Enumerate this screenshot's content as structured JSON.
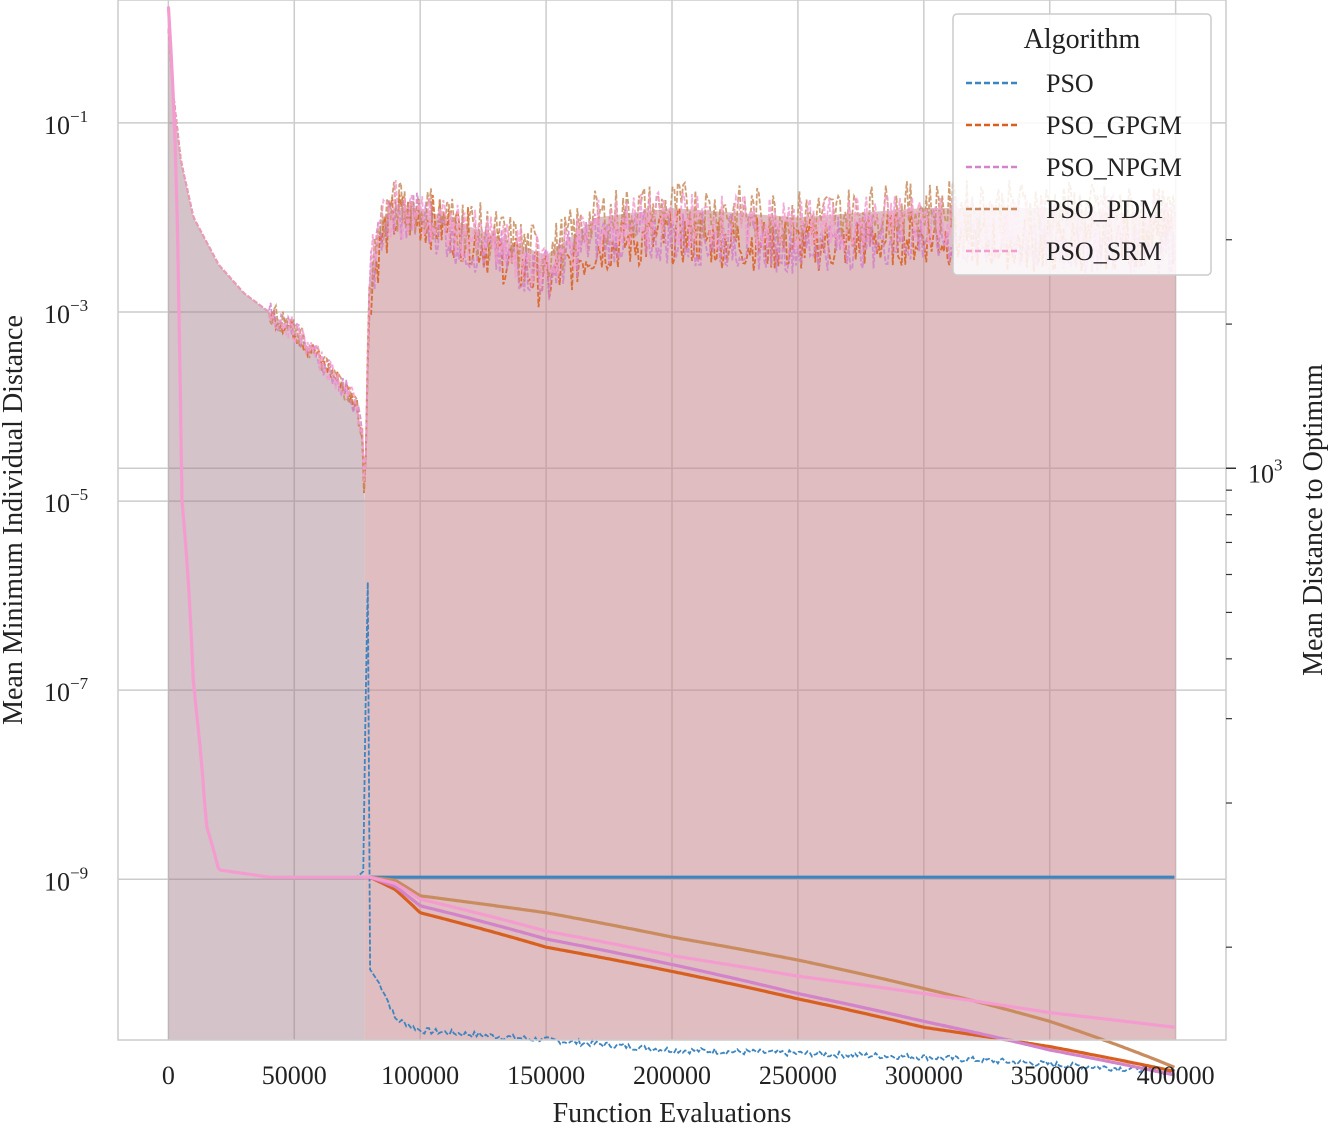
{
  "chart_data": {
    "type": "line",
    "xlabel": "Function Evaluations",
    "ylabel_left": "Mean Minimum Individual Distance",
    "ylabel_right": "Mean Distance to Optimum",
    "x_ticks": [
      0,
      50000,
      100000,
      150000,
      200000,
      250000,
      300000,
      350000,
      400000
    ],
    "x_tick_labels": [
      "0",
      "50000",
      "100000",
      "150000",
      "200000",
      "250000",
      "300000",
      "350000",
      "400000"
    ],
    "xlim": [
      -20000,
      420000
    ],
    "left_axis": {
      "scale": "log",
      "ylim_exp": [
        -10.7,
        0.3
      ],
      "ticks": [
        {
          "base": "10",
          "exp": "−1",
          "value_exp": -1
        },
        {
          "base": "10",
          "exp": "−3",
          "value_exp": -3
        },
        {
          "base": "10",
          "exp": "−5",
          "value_exp": -5
        },
        {
          "base": "10",
          "exp": "−7",
          "value_exp": -7
        },
        {
          "base": "10",
          "exp": "−9",
          "value_exp": -9
        }
      ]
    },
    "right_axis": {
      "scale": "log",
      "ylim": [
        64,
        9500
      ],
      "major_tick": {
        "base": "10",
        "exp": "3",
        "value": 1000
      },
      "minor_ticks": [
        100,
        200,
        300,
        400,
        500,
        600,
        700,
        800,
        900,
        2000,
        3000
      ]
    },
    "legend": {
      "title": "Algorithm",
      "placement": "top-right",
      "entries": [
        "PSO",
        "PSO_GPGM",
        "PSO_NPGM",
        "PSO_PDM",
        "PSO_SRM"
      ]
    },
    "colors": {
      "PSO": "#3d85c0",
      "PSO_GPGM": "#d95f1e",
      "PSO_NPGM": "#d383c9",
      "PSO_PDM": "#c98c5e",
      "PSO_SRM": "#f49ccf",
      "fill": "#c5868c"
    },
    "grid": true,
    "series": [
      {
        "name": "PSO",
        "axis": "right",
        "x": [
          0,
          5000,
          10000,
          15000,
          20000,
          40000,
          60000,
          75000,
          78000,
          79000,
          80000,
          85000,
          90000,
          100000,
          150000,
          200000,
          250000,
          300000,
          350000,
          400000
        ],
        "y": [
          9200,
          900,
          350,
          180,
          145,
          140,
          140,
          140,
          145,
          700,
          90,
          82,
          71,
          67,
          64,
          61,
          60,
          59,
          57,
          55
        ]
      },
      {
        "name": "PSO",
        "axis": "right",
        "style": "solid",
        "x": [
          80000,
          400000
        ],
        "y": [
          140,
          140
        ]
      },
      {
        "name": "PSO_GPGM",
        "axis": "left",
        "x": [
          0,
          2000,
          5000,
          10000,
          20000,
          30000,
          40000,
          50000,
          60000,
          70000,
          75000,
          77000,
          78000,
          79000,
          80000,
          85000,
          90000,
          100000,
          120000,
          150000,
          170000,
          200000,
          250000,
          300000,
          350000,
          400000
        ],
        "y_exp": [
          0,
          -0.7,
          -1.4,
          -2.0,
          -2.5,
          -2.8,
          -3.0,
          -3.2,
          -3.5,
          -3.8,
          -4.0,
          -4.3,
          -5.0,
          -3.8,
          -2.8,
          -2.2,
          -2.0,
          -2.0,
          -2.2,
          -2.7,
          -2.3,
          -2.2,
          -2.3,
          -2.2,
          -2.3,
          -2.2
        ]
      },
      {
        "name": "PSO_GPGM",
        "axis": "right",
        "style": "solid",
        "x": [
          80000,
          90000,
          100000,
          150000,
          200000,
          250000,
          300000,
          350000,
          400000
        ],
        "y": [
          140,
          132,
          118,
          100,
          89,
          78,
          68,
          62,
          55
        ]
      },
      {
        "name": "PSO_NPGM",
        "axis": "left",
        "x": [
          0,
          2000,
          5000,
          10000,
          20000,
          30000,
          40000,
          50000,
          60000,
          70000,
          75000,
          77000,
          78000,
          79000,
          80000,
          85000,
          90000,
          100000,
          120000,
          150000,
          170000,
          200000,
          250000,
          300000,
          350000,
          400000
        ],
        "y_exp": [
          0,
          -0.7,
          -1.4,
          -2.0,
          -2.5,
          -2.8,
          -3.0,
          -3.2,
          -3.5,
          -3.8,
          -4.0,
          -4.3,
          -5.0,
          -3.7,
          -2.7,
          -2.1,
          -2.0,
          -2.0,
          -2.3,
          -2.6,
          -2.2,
          -2.2,
          -2.3,
          -2.2,
          -2.3,
          -2.3
        ]
      },
      {
        "name": "PSO_NPGM",
        "axis": "right",
        "style": "solid",
        "x": [
          80000,
          90000,
          100000,
          150000,
          200000,
          250000,
          300000,
          350000,
          400000
        ],
        "y": [
          140,
          134,
          122,
          104,
          92,
          80,
          70,
          61,
          54
        ]
      },
      {
        "name": "PSO_PDM",
        "axis": "left",
        "x": [
          0,
          2000,
          5000,
          10000,
          20000,
          30000,
          40000,
          50000,
          60000,
          70000,
          75000,
          77000,
          78000,
          79000,
          80000,
          85000,
          90000,
          100000,
          120000,
          150000,
          170000,
          200000,
          250000,
          300000,
          350000,
          400000
        ],
        "y_exp": [
          0,
          -0.7,
          -1.4,
          -2.0,
          -2.5,
          -2.8,
          -3.0,
          -3.2,
          -3.5,
          -3.8,
          -4.0,
          -4.3,
          -5.0,
          -3.6,
          -2.6,
          -2.0,
          -1.9,
          -1.9,
          -2.1,
          -2.4,
          -2.0,
          -1.9,
          -2.0,
          -1.9,
          -1.9,
          -2.0
        ]
      },
      {
        "name": "PSO_PDM",
        "axis": "right",
        "style": "solid",
        "x": [
          80000,
          90000,
          100000,
          150000,
          200000,
          250000,
          300000,
          350000,
          400000
        ],
        "y": [
          140,
          138,
          128,
          118,
          105,
          94,
          82,
          70,
          56
        ]
      },
      {
        "name": "PSO_SRM",
        "axis": "left",
        "x": [
          0,
          2000,
          5000,
          10000,
          20000,
          30000,
          40000,
          50000,
          60000,
          70000,
          75000,
          77000,
          78000,
          79000,
          80000,
          85000,
          90000,
          100000,
          120000,
          150000,
          170000,
          200000,
          250000,
          300000,
          350000,
          400000
        ],
        "y_exp": [
          0,
          -0.7,
          -1.4,
          -2.0,
          -2.5,
          -2.8,
          -3.0,
          -3.2,
          -3.5,
          -3.8,
          -4.0,
          -4.3,
          -5.0,
          -3.6,
          -2.6,
          -2.0,
          -1.9,
          -2.0,
          -2.2,
          -2.5,
          -2.1,
          -2.0,
          -2.1,
          -2.0,
          -2.1,
          -2.0
        ]
      },
      {
        "name": "PSO_SRM",
        "axis": "right",
        "style": "solid",
        "x": [
          0,
          5000,
          10000,
          15000,
          20000,
          40000,
          60000,
          80000,
          90000,
          100000,
          150000,
          200000,
          250000,
          300000,
          350000,
          400000
        ],
        "y": [
          9200,
          900,
          350,
          180,
          145,
          140,
          140,
          140,
          136,
          126,
          108,
          96,
          87,
          80,
          73,
          68
        ]
      }
    ]
  }
}
